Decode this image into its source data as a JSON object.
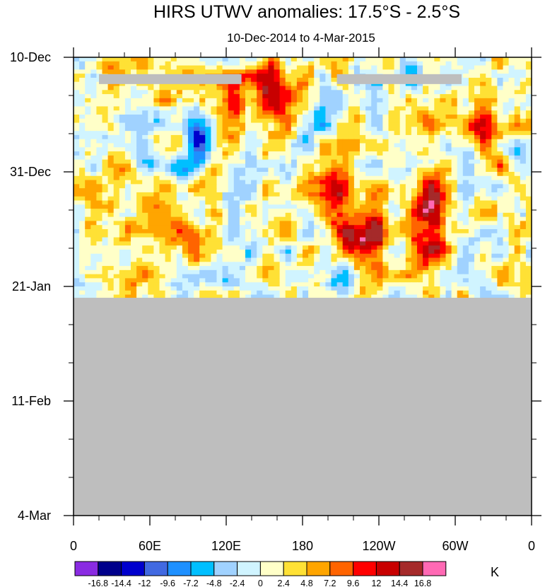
{
  "chart_data": {
    "type": "heatmap",
    "title": "HIRS UTWV anomalies: 17.5°S - 2.5°S",
    "subtitle": "10-Dec-2014 to 4-Mar-2015",
    "x_axis": {
      "label": "",
      "ticks": [
        {
          "label": "0",
          "lon": 0
        },
        {
          "label": "60E",
          "lon": 60
        },
        {
          "label": "120E",
          "lon": 120
        },
        {
          "label": "180",
          "lon": 180
        },
        {
          "label": "120W",
          "lon": 240
        },
        {
          "label": "60W",
          "lon": 300
        },
        {
          "label": "0",
          "lon": 360
        }
      ],
      "range": [
        0,
        360
      ]
    },
    "y_axis": {
      "label": "",
      "ticks": [
        {
          "label": "10-Dec",
          "day": 0
        },
        {
          "label": "31-Dec",
          "day": 21
        },
        {
          "label": "21-Jan",
          "day": 42
        },
        {
          "label": "11-Feb",
          "day": 63
        },
        {
          "label": "4-Mar",
          "day": 84
        }
      ],
      "range_days": [
        0,
        84
      ],
      "direction": "time increases downward"
    },
    "data_end_day": 44,
    "missing_segments": [
      {
        "day": 4,
        "lon_start": 20,
        "lon_end": 132
      },
      {
        "day": 4,
        "lon_start": 207,
        "lon_end": 305
      }
    ],
    "colorbar": {
      "unit": "K",
      "levels": [
        "-16.8",
        "-14.4",
        "-12",
        "-9.6",
        "-7.2",
        "-4.8",
        "-2.4",
        "0",
        "2.4",
        "4.8",
        "7.2",
        "9.6",
        "12",
        "14.4",
        "16.8"
      ],
      "colors": [
        "#8a2be2",
        "#00008b",
        "#0000cd",
        "#4169e1",
        "#1e90ff",
        "#00bfff",
        "#a0d2ff",
        "#d0f4ff",
        "#ffffc8",
        "#ffe135",
        "#ffa500",
        "#ff6400",
        "#ff0000",
        "#c80000",
        "#a52a2a",
        "#ff69b4"
      ]
    },
    "features": [
      {
        "lon": 35,
        "day": 21,
        "value": 5
      },
      {
        "lon": 92,
        "day": 34,
        "value": 8
      },
      {
        "lon": 97,
        "day": 15,
        "value": -10
      },
      {
        "lon": 125,
        "day": 8,
        "value": 6
      },
      {
        "lon": 150,
        "day": 5,
        "value": 7
      },
      {
        "lon": 165,
        "day": 7,
        "value": 9
      },
      {
        "lon": 180,
        "day": 12,
        "value": -5
      },
      {
        "lon": 205,
        "day": 26,
        "value": 9
      },
      {
        "lon": 220,
        "day": 34,
        "value": 13
      },
      {
        "lon": 235,
        "day": 32,
        "value": 10
      },
      {
        "lon": 282,
        "day": 25,
        "value": 12
      },
      {
        "lon": 280,
        "day": 33,
        "value": 12
      },
      {
        "lon": 325,
        "day": 14,
        "value": 9
      },
      {
        "lon": 262,
        "day": 3,
        "value": -6
      },
      {
        "lon": 213,
        "day": 40,
        "value": -6
      },
      {
        "lon": 125,
        "day": 26,
        "value": -5
      },
      {
        "lon": 45,
        "day": 10,
        "value": -4
      }
    ]
  }
}
